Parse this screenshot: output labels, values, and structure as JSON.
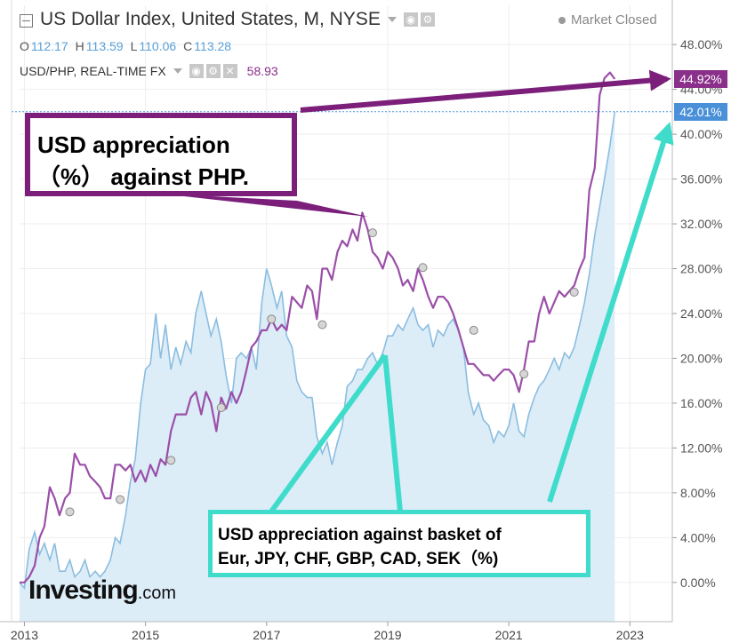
{
  "header": {
    "title": "US Dollar Index, United States, M, NYSE",
    "ohlc": [
      {
        "k": "O",
        "v": "112.17"
      },
      {
        "k": "H",
        "v": "113.59"
      },
      {
        "k": "L",
        "v": "110.06"
      },
      {
        "k": "C",
        "v": "113.28"
      }
    ],
    "overlay_label": "USD/PHP, REAL-TIME FX",
    "overlay_value": "58.93",
    "market_status": "Market Closed",
    "logo_main": "Investing",
    "logo_suffix": ".com"
  },
  "icons": [
    "collapse-icon",
    "caret-down-icon",
    "eye-icon",
    "gear-icon",
    "close-icon"
  ],
  "annotations": {
    "php_line1": "USD appreciation",
    "php_line2": "（%） against PHP.",
    "basket_line1": "USD appreciation against basket of",
    "basket_line2": "Eur, JPY, CHF, GBP, CAD, SEK（%)"
  },
  "colors": {
    "dxy_line": "#8bbde0",
    "dxy_fill": "#dcedf8",
    "php_line": "#9b4fa8",
    "php_tag": "#8a2f8a",
    "dxy_tag": "#4a90d9",
    "php_arrow": "#7b1f7b",
    "basket_arrow": "#40dccb"
  },
  "chart_data": {
    "type": "line",
    "x_ticks": [
      "2013",
      "2015",
      "2017",
      "2019",
      "2021",
      "2023"
    ],
    "y_ticks": [
      "0.00%",
      "4.00%",
      "8.00%",
      "12.00%",
      "16.00%",
      "20.00%",
      "24.00%",
      "28.00%",
      "32.00%",
      "36.00%",
      "40.00%",
      "44.00%",
      "48.00%"
    ],
    "ylim": [
      -3.5,
      51.5
    ],
    "xlim": [
      2012.92,
      2023.7
    ],
    "last_tags": [
      {
        "series": "USD/PHP",
        "label": "44.92%",
        "value": 44.92
      },
      {
        "series": "US Dollar Index",
        "label": "42.01%",
        "value": 42.01
      }
    ],
    "series": [
      {
        "name": "US Dollar Index",
        "style": "area",
        "x": [
          2012.92,
          2013.0,
          2013.08,
          2013.17,
          2013.25,
          2013.33,
          2013.42,
          2013.5,
          2013.58,
          2013.67,
          2013.75,
          2013.83,
          2013.92,
          2014.0,
          2014.08,
          2014.17,
          2014.25,
          2014.33,
          2014.42,
          2014.5,
          2014.58,
          2014.67,
          2014.75,
          2014.83,
          2014.92,
          2015.0,
          2015.08,
          2015.17,
          2015.25,
          2015.33,
          2015.42,
          2015.5,
          2015.58,
          2015.67,
          2015.75,
          2015.83,
          2015.92,
          2016.0,
          2016.08,
          2016.17,
          2016.25,
          2016.33,
          2016.42,
          2016.5,
          2016.58,
          2016.67,
          2016.75,
          2016.83,
          2016.92,
          2017.0,
          2017.08,
          2017.17,
          2017.25,
          2017.33,
          2017.42,
          2017.5,
          2017.58,
          2017.67,
          2017.75,
          2017.83,
          2017.92,
          2018.0,
          2018.08,
          2018.17,
          2018.25,
          2018.33,
          2018.42,
          2018.5,
          2018.58,
          2018.67,
          2018.75,
          2018.83,
          2018.92,
          2019.0,
          2019.08,
          2019.17,
          2019.25,
          2019.33,
          2019.42,
          2019.5,
          2019.58,
          2019.67,
          2019.75,
          2019.83,
          2019.92,
          2020.0,
          2020.08,
          2020.17,
          2020.25,
          2020.33,
          2020.42,
          2020.5,
          2020.58,
          2020.67,
          2020.75,
          2020.83,
          2020.92,
          2021.0,
          2021.08,
          2021.17,
          2021.25,
          2021.33,
          2021.42,
          2021.5,
          2021.58,
          2021.67,
          2021.75,
          2021.83,
          2021.92,
          2022.0,
          2022.08,
          2022.17,
          2022.25,
          2022.33,
          2022.42,
          2022.5,
          2022.58,
          2022.67,
          2022.75
        ],
        "values": [
          0.0,
          -0.5,
          3.0,
          4.5,
          2.5,
          3.5,
          2.0,
          3.5,
          1.0,
          1.0,
          2.0,
          0.5,
          1.0,
          2.0,
          0.5,
          1.0,
          0.5,
          1.0,
          2.0,
          4.0,
          3.5,
          6.0,
          9.0,
          11.0,
          16.0,
          19.0,
          19.5,
          24.0,
          20.0,
          23.0,
          19.0,
          21.0,
          19.5,
          21.5,
          20.5,
          24.0,
          26.0,
          24.0,
          22.0,
          23.5,
          21.5,
          18.5,
          16.0,
          20.0,
          20.5,
          20.0,
          21.0,
          19.0,
          25.0,
          28.0,
          26.5,
          24.5,
          26.0,
          22.0,
          21.0,
          18.0,
          17.0,
          16.5,
          16.5,
          13.0,
          11.5,
          12.5,
          10.5,
          12.5,
          14.0,
          17.5,
          18.0,
          19.0,
          19.0,
          20.0,
          20.5,
          19.5,
          20.5,
          22.0,
          22.0,
          23.0,
          22.5,
          23.5,
          24.5,
          23.0,
          22.5,
          23.0,
          21.0,
          22.5,
          22.0,
          23.0,
          23.5,
          22.5,
          21.0,
          17.0,
          15.0,
          16.0,
          14.5,
          14.0,
          12.5,
          13.5,
          13.0,
          14.0,
          16.0,
          13.5,
          13.0,
          15.0,
          16.5,
          17.5,
          18.0,
          19.0,
          20.0,
          19.0,
          20.5,
          20.0,
          21.0,
          23.0,
          25.0,
          27.5,
          31.0,
          33.5,
          36.0,
          39.0,
          42.01
        ]
      },
      {
        "name": "USD/PHP",
        "style": "line",
        "x": [
          2012.92,
          2013.0,
          2013.08,
          2013.17,
          2013.25,
          2013.33,
          2013.42,
          2013.5,
          2013.58,
          2013.67,
          2013.75,
          2013.83,
          2013.92,
          2014.0,
          2014.08,
          2014.17,
          2014.25,
          2014.33,
          2014.42,
          2014.5,
          2014.58,
          2014.67,
          2014.75,
          2014.83,
          2014.92,
          2015.0,
          2015.08,
          2015.17,
          2015.25,
          2015.33,
          2015.42,
          2015.5,
          2015.58,
          2015.67,
          2015.75,
          2015.83,
          2015.92,
          2016.0,
          2016.08,
          2016.17,
          2016.25,
          2016.33,
          2016.42,
          2016.5,
          2016.58,
          2016.67,
          2016.75,
          2016.83,
          2016.92,
          2017.0,
          2017.08,
          2017.17,
          2017.25,
          2017.33,
          2017.42,
          2017.5,
          2017.58,
          2017.67,
          2017.75,
          2017.83,
          2017.92,
          2018.0,
          2018.08,
          2018.17,
          2018.25,
          2018.33,
          2018.42,
          2018.5,
          2018.58,
          2018.67,
          2018.75,
          2018.83,
          2018.92,
          2019.0,
          2019.08,
          2019.17,
          2019.25,
          2019.33,
          2019.42,
          2019.5,
          2019.58,
          2019.67,
          2019.75,
          2019.83,
          2019.92,
          2020.0,
          2020.08,
          2020.17,
          2020.25,
          2020.33,
          2020.42,
          2020.5,
          2020.58,
          2020.67,
          2020.75,
          2020.83,
          2020.92,
          2021.0,
          2021.08,
          2021.17,
          2021.25,
          2021.33,
          2021.42,
          2021.5,
          2021.58,
          2021.67,
          2021.75,
          2021.83,
          2021.92,
          2022.0,
          2022.08,
          2022.17,
          2022.25,
          2022.33,
          2022.42,
          2022.5,
          2022.58,
          2022.67,
          2022.75
        ],
        "values": [
          0.0,
          0.0,
          0.5,
          1.5,
          4.0,
          5.0,
          8.5,
          7.5,
          6.0,
          7.5,
          8.0,
          11.5,
          10.5,
          10.5,
          9.5,
          9.0,
          8.5,
          7.5,
          7.5,
          10.5,
          10.5,
          10.0,
          10.5,
          9.0,
          10.0,
          9.0,
          10.5,
          9.5,
          11.0,
          10.5,
          13.5,
          15.0,
          15.0,
          15.0,
          16.5,
          17.0,
          15.0,
          17.0,
          16.0,
          13.5,
          16.5,
          15.5,
          17.0,
          16.0,
          17.0,
          19.0,
          21.0,
          21.5,
          22.5,
          22.5,
          23.5,
          22.5,
          23.0,
          22.5,
          25.5,
          25.0,
          24.5,
          26.5,
          26.0,
          23.5,
          28.0,
          28.0,
          27.0,
          29.5,
          30.5,
          30.0,
          31.5,
          30.5,
          33.0,
          31.5,
          29.5,
          29.0,
          28.0,
          29.5,
          29.0,
          28.0,
          26.5,
          27.0,
          26.0,
          28.0,
          27.0,
          25.5,
          24.5,
          25.5,
          25.5,
          25.0,
          24.0,
          22.5,
          21.0,
          19.5,
          19.5,
          19.0,
          18.5,
          18.5,
          18.0,
          18.5,
          19.0,
          19.0,
          18.5,
          17.0,
          19.0,
          21.5,
          21.5,
          24.0,
          25.5,
          24.0,
          25.0,
          26.0,
          25.5,
          26.0,
          26.5,
          28.0,
          29.0,
          35.0,
          37.0,
          43.5,
          45.0,
          45.5,
          44.92
        ]
      }
    ],
    "markers": [
      {
        "series": "USD/PHP",
        "x": 2013.75,
        "value": 6.3
      },
      {
        "series": "USD/PHP",
        "x": 2014.58,
        "value": 7.4
      },
      {
        "series": "USD/PHP",
        "x": 2015.42,
        "value": 10.9
      },
      {
        "series": "USD/PHP",
        "x": 2016.25,
        "value": 15.6
      },
      {
        "series": "USD/PHP",
        "x": 2017.08,
        "value": 23.5
      },
      {
        "series": "USD/PHP",
        "x": 2017.92,
        "value": 23.0
      },
      {
        "series": "USD/PHP",
        "x": 2018.75,
        "value": 31.2
      },
      {
        "series": "USD/PHP",
        "x": 2019.58,
        "value": 28.1
      },
      {
        "series": "USD/PHP",
        "x": 2020.42,
        "value": 22.5
      },
      {
        "series": "USD/PHP",
        "x": 2021.25,
        "value": 18.6
      },
      {
        "series": "USD/PHP",
        "x": 2022.08,
        "value": 25.9
      }
    ]
  }
}
